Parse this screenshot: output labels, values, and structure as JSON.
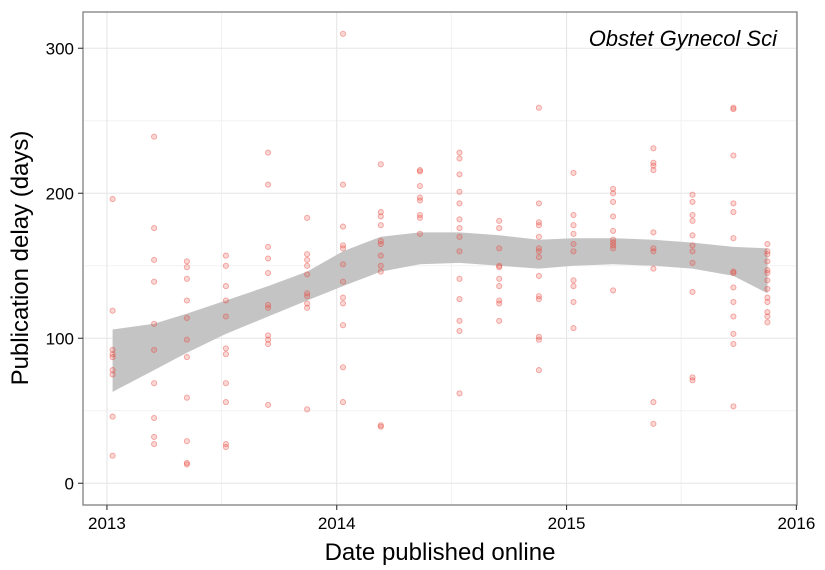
{
  "chart_data": {
    "type": "scatter",
    "title": "",
    "annotation": "Obstet Gynecol Sci",
    "xlabel": "Date published online",
    "ylabel": "Publication delay (days)",
    "x_ticks": [
      "2013",
      "2014",
      "2015",
      "2016"
    ],
    "y_ticks": [
      "0",
      "100",
      "200",
      "300"
    ],
    "xlim": [
      "2012-11-24",
      "2016-01-02"
    ],
    "ylim": [
      -15,
      325
    ],
    "grid": true,
    "legend": "none",
    "colors": {
      "points": "#e8463c",
      "band": "#c4c4c4"
    },
    "series": [
      {
        "points": [
          [
            "2013-01-10",
            196
          ],
          [
            "2013-01-10",
            119
          ],
          [
            "2013-01-10",
            92
          ],
          [
            "2013-01-10",
            89
          ],
          [
            "2013-01-10",
            87
          ],
          [
            "2013-01-10",
            78
          ],
          [
            "2013-01-10",
            75
          ],
          [
            "2013-01-10",
            46
          ],
          [
            "2013-01-10",
            19
          ],
          [
            "2013-03-17",
            239
          ],
          [
            "2013-03-17",
            176
          ],
          [
            "2013-03-17",
            154
          ],
          [
            "2013-03-17",
            139
          ],
          [
            "2013-03-17",
            110
          ],
          [
            "2013-03-17",
            92
          ],
          [
            "2013-03-17",
            69
          ],
          [
            "2013-03-17",
            45
          ],
          [
            "2013-03-17",
            32
          ],
          [
            "2013-03-17",
            27
          ],
          [
            "2013-05-08",
            153
          ],
          [
            "2013-05-08",
            149
          ],
          [
            "2013-05-08",
            141
          ],
          [
            "2013-05-08",
            126
          ],
          [
            "2013-05-08",
            114
          ],
          [
            "2013-05-08",
            99
          ],
          [
            "2013-05-08",
            87
          ],
          [
            "2013-05-08",
            59
          ],
          [
            "2013-05-08",
            29
          ],
          [
            "2013-05-08",
            14
          ],
          [
            "2013-05-08",
            13
          ],
          [
            "2013-07-09",
            157
          ],
          [
            "2013-07-09",
            150
          ],
          [
            "2013-07-09",
            136
          ],
          [
            "2013-07-09",
            126
          ],
          [
            "2013-07-09",
            115
          ],
          [
            "2013-07-09",
            93
          ],
          [
            "2013-07-09",
            89
          ],
          [
            "2013-07-09",
            69
          ],
          [
            "2013-07-09",
            56
          ],
          [
            "2013-07-09",
            27
          ],
          [
            "2013-07-09",
            25
          ],
          [
            "2013-09-14",
            228
          ],
          [
            "2013-09-14",
            206
          ],
          [
            "2013-09-14",
            163
          ],
          [
            "2013-09-14",
            155
          ],
          [
            "2013-09-14",
            145
          ],
          [
            "2013-09-14",
            123
          ],
          [
            "2013-09-14",
            121
          ],
          [
            "2013-09-14",
            102
          ],
          [
            "2013-09-14",
            99
          ],
          [
            "2013-09-14",
            96
          ],
          [
            "2013-09-14",
            54
          ],
          [
            "2013-11-15",
            183
          ],
          [
            "2013-11-15",
            158
          ],
          [
            "2013-11-15",
            154
          ],
          [
            "2013-11-15",
            150
          ],
          [
            "2013-11-15",
            144
          ],
          [
            "2013-11-15",
            131
          ],
          [
            "2013-11-15",
            129
          ],
          [
            "2013-11-15",
            124
          ],
          [
            "2013-11-15",
            121
          ],
          [
            "2013-11-15",
            51
          ],
          [
            "2014-01-11",
            310
          ],
          [
            "2014-01-11",
            206
          ],
          [
            "2014-01-11",
            177
          ],
          [
            "2014-01-11",
            164
          ],
          [
            "2014-01-11",
            162
          ],
          [
            "2014-01-11",
            151
          ],
          [
            "2014-01-11",
            139
          ],
          [
            "2014-01-11",
            128
          ],
          [
            "2014-01-11",
            124
          ],
          [
            "2014-01-11",
            109
          ],
          [
            "2014-01-11",
            80
          ],
          [
            "2014-01-11",
            56
          ],
          [
            "2014-03-12",
            220
          ],
          [
            "2014-03-12",
            187
          ],
          [
            "2014-03-12",
            184
          ],
          [
            "2014-03-12",
            178
          ],
          [
            "2014-03-12",
            167
          ],
          [
            "2014-03-12",
            165
          ],
          [
            "2014-03-12",
            157
          ],
          [
            "2014-03-12",
            150
          ],
          [
            "2014-03-12",
            146
          ],
          [
            "2014-03-12",
            40
          ],
          [
            "2014-03-12",
            39
          ],
          [
            "2014-05-13",
            216
          ],
          [
            "2014-05-13",
            215
          ],
          [
            "2014-05-13",
            205
          ],
          [
            "2014-05-13",
            197
          ],
          [
            "2014-05-13",
            195
          ],
          [
            "2014-05-13",
            185
          ],
          [
            "2014-05-13",
            183
          ],
          [
            "2014-05-13",
            172
          ],
          [
            "2014-07-15",
            228
          ],
          [
            "2014-07-15",
            224
          ],
          [
            "2014-07-15",
            213
          ],
          [
            "2014-07-15",
            201
          ],
          [
            "2014-07-15",
            193
          ],
          [
            "2014-07-15",
            182
          ],
          [
            "2014-07-15",
            176
          ],
          [
            "2014-07-15",
            170
          ],
          [
            "2014-07-15",
            160
          ],
          [
            "2014-07-15",
            141
          ],
          [
            "2014-07-15",
            127
          ],
          [
            "2014-07-15",
            112
          ],
          [
            "2014-07-15",
            105
          ],
          [
            "2014-07-15",
            62
          ],
          [
            "2014-09-16",
            181
          ],
          [
            "2014-09-16",
            176
          ],
          [
            "2014-09-16",
            162
          ],
          [
            "2014-09-16",
            150
          ],
          [
            "2014-09-16",
            149
          ],
          [
            "2014-09-16",
            141
          ],
          [
            "2014-09-16",
            136
          ],
          [
            "2014-09-16",
            126
          ],
          [
            "2014-09-16",
            124
          ],
          [
            "2014-09-16",
            112
          ],
          [
            "2014-11-18",
            259
          ],
          [
            "2014-11-18",
            193
          ],
          [
            "2014-11-18",
            180
          ],
          [
            "2014-11-18",
            178
          ],
          [
            "2014-11-18",
            170
          ],
          [
            "2014-11-18",
            162
          ],
          [
            "2014-11-18",
            160
          ],
          [
            "2014-11-18",
            156
          ],
          [
            "2014-11-18",
            143
          ],
          [
            "2014-11-18",
            129
          ],
          [
            "2014-11-18",
            127
          ],
          [
            "2014-11-18",
            101
          ],
          [
            "2014-11-18",
            99
          ],
          [
            "2014-11-18",
            78
          ],
          [
            "2015-01-12",
            214
          ],
          [
            "2015-01-12",
            185
          ],
          [
            "2015-01-12",
            178
          ],
          [
            "2015-01-12",
            172
          ],
          [
            "2015-01-12",
            165
          ],
          [
            "2015-01-12",
            160
          ],
          [
            "2015-01-12",
            140
          ],
          [
            "2015-01-12",
            136
          ],
          [
            "2015-01-12",
            125
          ],
          [
            "2015-01-12",
            107
          ],
          [
            "2015-03-16",
            203
          ],
          [
            "2015-03-16",
            200
          ],
          [
            "2015-03-16",
            194
          ],
          [
            "2015-03-16",
            184
          ],
          [
            "2015-03-16",
            174
          ],
          [
            "2015-03-16",
            168
          ],
          [
            "2015-03-16",
            166
          ],
          [
            "2015-03-16",
            164
          ],
          [
            "2015-03-16",
            162
          ],
          [
            "2015-03-16",
            133
          ],
          [
            "2015-05-19",
            231
          ],
          [
            "2015-05-19",
            221
          ],
          [
            "2015-05-19",
            219
          ],
          [
            "2015-05-19",
            216
          ],
          [
            "2015-05-19",
            173
          ],
          [
            "2015-05-19",
            162
          ],
          [
            "2015-05-19",
            160
          ],
          [
            "2015-05-19",
            148
          ],
          [
            "2015-05-19",
            56
          ],
          [
            "2015-05-19",
            41
          ],
          [
            "2015-07-20",
            199
          ],
          [
            "2015-07-20",
            194
          ],
          [
            "2015-07-20",
            185
          ],
          [
            "2015-07-20",
            181
          ],
          [
            "2015-07-20",
            171
          ],
          [
            "2015-07-20",
            164
          ],
          [
            "2015-07-20",
            160
          ],
          [
            "2015-07-20",
            152
          ],
          [
            "2015-07-20",
            132
          ],
          [
            "2015-07-20",
            73
          ],
          [
            "2015-07-20",
            71
          ],
          [
            "2015-09-23",
            259
          ],
          [
            "2015-09-23",
            258
          ],
          [
            "2015-09-23",
            226
          ],
          [
            "2015-09-23",
            193
          ],
          [
            "2015-09-23",
            187
          ],
          [
            "2015-09-23",
            169
          ],
          [
            "2015-09-23",
            146
          ],
          [
            "2015-09-23",
            145
          ],
          [
            "2015-09-23",
            135
          ],
          [
            "2015-09-23",
            125
          ],
          [
            "2015-09-23",
            115
          ],
          [
            "2015-09-23",
            103
          ],
          [
            "2015-09-23",
            96
          ],
          [
            "2015-09-23",
            53
          ],
          [
            "2015-11-16",
            165
          ],
          [
            "2015-11-16",
            160
          ],
          [
            "2015-11-16",
            158
          ],
          [
            "2015-11-16",
            153
          ],
          [
            "2015-11-16",
            147
          ],
          [
            "2015-11-16",
            145
          ],
          [
            "2015-11-16",
            140
          ],
          [
            "2015-11-16",
            134
          ],
          [
            "2015-11-16",
            128
          ],
          [
            "2015-11-16",
            125
          ],
          [
            "2015-11-16",
            118
          ],
          [
            "2015-11-16",
            115
          ],
          [
            "2015-11-16",
            111
          ]
        ]
      }
    ],
    "smooth_band": [
      {
        "x": "2013-01-10",
        "lower": 63,
        "upper": 106
      },
      {
        "x": "2013-03-17",
        "lower": 78,
        "upper": 110
      },
      {
        "x": "2013-05-08",
        "lower": 90,
        "upper": 117
      },
      {
        "x": "2013-07-09",
        "lower": 103,
        "upper": 126
      },
      {
        "x": "2013-09-14",
        "lower": 115,
        "upper": 136
      },
      {
        "x": "2013-11-15",
        "lower": 126,
        "upper": 146
      },
      {
        "x": "2014-01-11",
        "lower": 136,
        "upper": 160
      },
      {
        "x": "2014-03-12",
        "lower": 146,
        "upper": 170
      },
      {
        "x": "2014-05-13",
        "lower": 151,
        "upper": 173
      },
      {
        "x": "2014-07-15",
        "lower": 152,
        "upper": 173
      },
      {
        "x": "2014-09-16",
        "lower": 150,
        "upper": 171
      },
      {
        "x": "2014-11-18",
        "lower": 148,
        "upper": 168
      },
      {
        "x": "2015-01-12",
        "lower": 150,
        "upper": 169
      },
      {
        "x": "2015-03-16",
        "lower": 151,
        "upper": 169
      },
      {
        "x": "2015-05-19",
        "lower": 150,
        "upper": 168
      },
      {
        "x": "2015-07-20",
        "lower": 148,
        "upper": 166
      },
      {
        "x": "2015-09-23",
        "lower": 143,
        "upper": 163
      },
      {
        "x": "2015-11-16",
        "lower": 131,
        "upper": 162
      }
    ]
  }
}
